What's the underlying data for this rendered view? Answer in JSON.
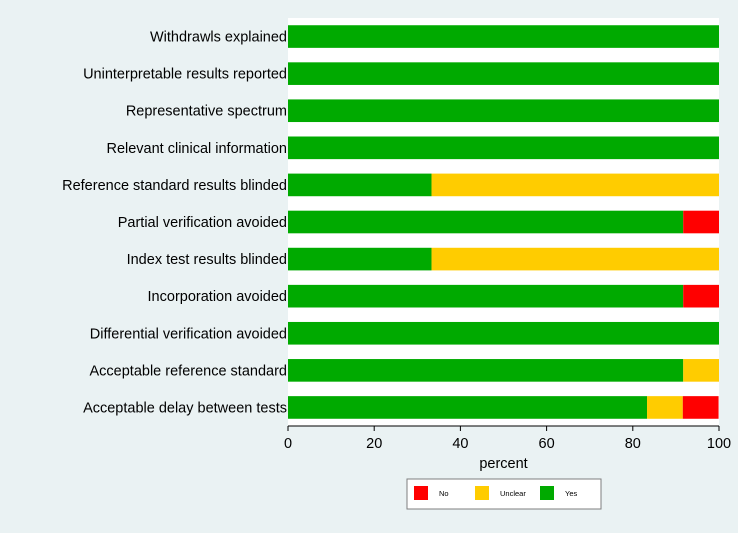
{
  "chart_data": {
    "type": "bar",
    "orientation": "horizontal",
    "stacked": true,
    "categories": [
      "Withdrawls explained",
      "Uninterpretable results reported",
      "Representative spectrum",
      "Relevant clinical information",
      "Reference standard results blinded",
      "Partial verification avoided",
      "Index test results blinded",
      "Incorporation avoided",
      "Differential verification avoided",
      "Acceptable reference standard",
      "Acceptable delay between tests"
    ],
    "series": [
      {
        "name": "Yes",
        "color": "#00aa00",
        "values": [
          100,
          100,
          100,
          100,
          33.3,
          91.7,
          33.3,
          91.7,
          100,
          91.7,
          83.3
        ]
      },
      {
        "name": "Unclear",
        "color": "#ffcc00",
        "values": [
          0,
          0,
          0,
          0,
          66.7,
          0,
          66.7,
          0,
          0,
          8.3,
          8.3
        ]
      },
      {
        "name": "No",
        "color": "#ff0000",
        "values": [
          0,
          0,
          0,
          0,
          0,
          8.3,
          0,
          8.3,
          0,
          0,
          8.3
        ]
      }
    ],
    "legend_order": [
      "No",
      "Unclear",
      "Yes"
    ],
    "xlabel": "percent",
    "ylabel": "",
    "xlim": [
      0,
      100
    ],
    "xticks": [
      0,
      20,
      40,
      60,
      80,
      100
    ],
    "legend_position": "bottom",
    "grid": false
  }
}
